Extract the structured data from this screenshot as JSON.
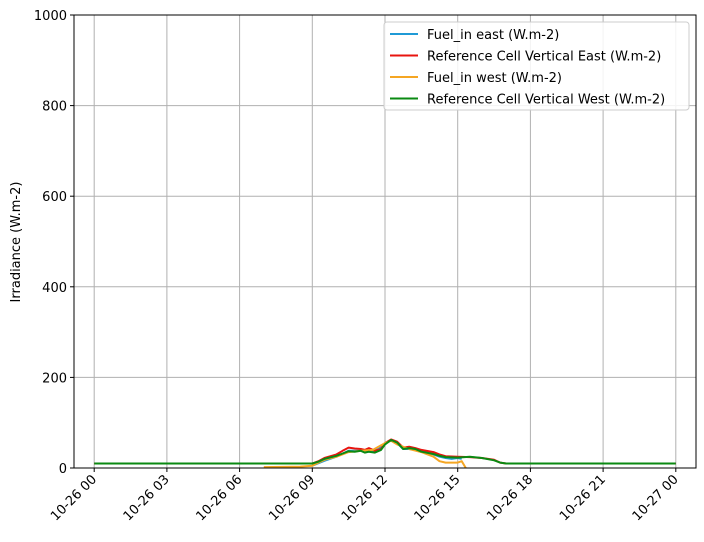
{
  "chart_data": {
    "type": "line",
    "title": "",
    "xlabel": "",
    "ylabel": "Irradiance (W.m-2)",
    "ylim": [
      0,
      1000
    ],
    "xlim": [
      "2025-10-25 23:10",
      "2025-10-27 00:50"
    ],
    "grid": true,
    "legend_position": "top-right",
    "x_ticks": [
      {
        "t": "2025-10-26 00:00",
        "label": "10-26 00"
      },
      {
        "t": "2025-10-26 03:00",
        "label": "10-26 03"
      },
      {
        "t": "2025-10-26 06:00",
        "label": "10-26 06"
      },
      {
        "t": "2025-10-26 09:00",
        "label": "10-26 09"
      },
      {
        "t": "2025-10-26 12:00",
        "label": "10-26 12"
      },
      {
        "t": "2025-10-26 15:00",
        "label": "10-26 15"
      },
      {
        "t": "2025-10-26 18:00",
        "label": "10-26 18"
      },
      {
        "t": "2025-10-26 21:00",
        "label": "10-26 21"
      },
      {
        "t": "2025-10-27 00:00",
        "label": "10-27 00"
      }
    ],
    "y_ticks": [
      {
        "v": 0,
        "label": "0"
      },
      {
        "v": 200,
        "label": "200"
      },
      {
        "v": 400,
        "label": "400"
      },
      {
        "v": 600,
        "label": "600"
      },
      {
        "v": 800,
        "label": "800"
      },
      {
        "v": 1000,
        "label": "1000"
      }
    ],
    "series": [
      {
        "name": "Fuel_in east (W.m-2)",
        "color": "#1f9ad6",
        "points": [
          [
            "2025-10-26 09:00",
            5
          ],
          [
            "2025-10-26 09:30",
            16
          ],
          [
            "2025-10-26 10:00",
            25
          ],
          [
            "2025-10-26 10:30",
            38
          ],
          [
            "2025-10-26 11:00",
            38
          ],
          [
            "2025-10-26 11:15",
            35
          ],
          [
            "2025-10-26 11:30",
            38
          ],
          [
            "2025-10-26 11:45",
            42
          ],
          [
            "2025-10-26 12:00",
            55
          ],
          [
            "2025-10-26 12:15",
            62
          ],
          [
            "2025-10-26 12:30",
            55
          ],
          [
            "2025-10-26 12:45",
            42
          ],
          [
            "2025-10-26 13:00",
            42
          ],
          [
            "2025-10-26 13:30",
            38
          ],
          [
            "2025-10-26 14:00",
            30
          ],
          [
            "2025-10-26 14:15",
            25
          ],
          [
            "2025-10-26 14:30",
            22
          ],
          [
            "2025-10-26 14:45",
            20
          ],
          [
            "2025-10-26 15:00",
            22
          ],
          [
            "2025-10-26 15:10",
            20
          ]
        ]
      },
      {
        "name": "Reference Cell Vertical East (W.m-2)",
        "color": "#e8140f",
        "points": [
          [
            "2025-10-26 00:00",
            10
          ],
          [
            "2025-10-26 09:00",
            10
          ],
          [
            "2025-10-26 09:15",
            15
          ],
          [
            "2025-10-26 09:30",
            22
          ],
          [
            "2025-10-26 10:00",
            30
          ],
          [
            "2025-10-26 10:15",
            38
          ],
          [
            "2025-10-26 10:30",
            45
          ],
          [
            "2025-10-26 10:45",
            43
          ],
          [
            "2025-10-26 11:00",
            42
          ],
          [
            "2025-10-26 11:10",
            40
          ],
          [
            "2025-10-26 11:20",
            44
          ],
          [
            "2025-10-26 11:35",
            38
          ],
          [
            "2025-10-26 11:50",
            42
          ],
          [
            "2025-10-26 12:00",
            55
          ],
          [
            "2025-10-26 12:15",
            63
          ],
          [
            "2025-10-26 12:30",
            58
          ],
          [
            "2025-10-26 12:45",
            45
          ],
          [
            "2025-10-26 13:00",
            47
          ],
          [
            "2025-10-26 13:15",
            44
          ],
          [
            "2025-10-26 13:30",
            40
          ],
          [
            "2025-10-26 14:00",
            35
          ],
          [
            "2025-10-26 14:15",
            30
          ],
          [
            "2025-10-26 14:30",
            26
          ],
          [
            "2025-10-26 15:00",
            25
          ],
          [
            "2025-10-26 15:30",
            24
          ],
          [
            "2025-10-26 16:00",
            22
          ],
          [
            "2025-10-26 16:30",
            18
          ],
          [
            "2025-10-26 16:45",
            12
          ],
          [
            "2025-10-26 17:00",
            10
          ],
          [
            "2025-10-27 00:00",
            10
          ]
        ]
      },
      {
        "name": "Fuel_in west (W.m-2)",
        "color": "#f5a623",
        "points": [
          [
            "2025-10-26 07:00",
            2
          ],
          [
            "2025-10-26 08:30",
            3
          ],
          [
            "2025-10-26 09:00",
            5
          ],
          [
            "2025-10-26 09:15",
            12
          ],
          [
            "2025-10-26 09:30",
            18
          ],
          [
            "2025-10-26 10:00",
            25
          ],
          [
            "2025-10-26 10:30",
            35
          ],
          [
            "2025-10-26 11:00",
            38
          ],
          [
            "2025-10-26 11:30",
            40
          ],
          [
            "2025-10-26 12:00",
            55
          ],
          [
            "2025-10-26 12:15",
            60
          ],
          [
            "2025-10-26 12:30",
            52
          ],
          [
            "2025-10-26 13:00",
            42
          ],
          [
            "2025-10-26 13:30",
            35
          ],
          [
            "2025-10-26 14:00",
            25
          ],
          [
            "2025-10-26 14:15",
            15
          ],
          [
            "2025-10-26 14:30",
            12
          ],
          [
            "2025-10-26 15:00",
            12
          ],
          [
            "2025-10-26 15:10",
            15
          ],
          [
            "2025-10-26 15:20",
            0
          ]
        ]
      },
      {
        "name": "Reference Cell Vertical West (W.m-2)",
        "color": "#0a8a12",
        "points": [
          [
            "2025-10-26 00:00",
            10
          ],
          [
            "2025-10-26 09:00",
            10
          ],
          [
            "2025-10-26 09:15",
            14
          ],
          [
            "2025-10-26 09:30",
            20
          ],
          [
            "2025-10-26 10:00",
            27
          ],
          [
            "2025-10-26 10:15",
            32
          ],
          [
            "2025-10-26 10:30",
            37
          ],
          [
            "2025-10-26 10:45",
            36
          ],
          [
            "2025-10-26 11:00",
            38
          ],
          [
            "2025-10-26 11:10",
            34
          ],
          [
            "2025-10-26 11:20",
            36
          ],
          [
            "2025-10-26 11:35",
            34
          ],
          [
            "2025-10-26 11:50",
            40
          ],
          [
            "2025-10-26 12:00",
            52
          ],
          [
            "2025-10-26 12:15",
            62
          ],
          [
            "2025-10-26 12:30",
            56
          ],
          [
            "2025-10-26 12:45",
            42
          ],
          [
            "2025-10-26 13:00",
            44
          ],
          [
            "2025-10-26 13:15",
            42
          ],
          [
            "2025-10-26 13:30",
            36
          ],
          [
            "2025-10-26 14:00",
            31
          ],
          [
            "2025-10-26 14:15",
            27
          ],
          [
            "2025-10-26 14:30",
            24
          ],
          [
            "2025-10-26 15:00",
            23
          ],
          [
            "2025-10-26 15:30",
            25
          ],
          [
            "2025-10-26 16:00",
            22
          ],
          [
            "2025-10-26 16:30",
            17
          ],
          [
            "2025-10-26 16:45",
            12
          ],
          [
            "2025-10-26 17:00",
            10
          ],
          [
            "2025-10-27 00:00",
            10
          ]
        ]
      }
    ]
  }
}
